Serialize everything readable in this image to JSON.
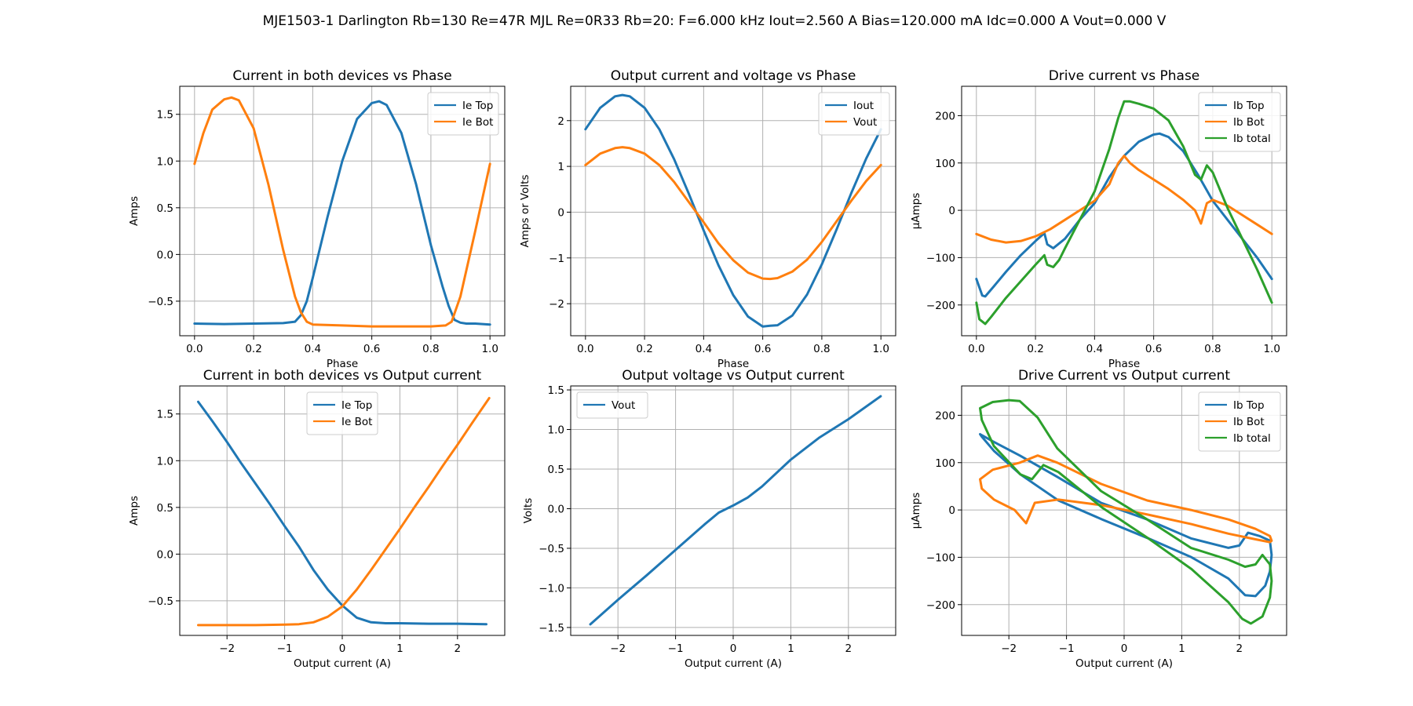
{
  "figure": {
    "title": "MJE1503-1 Darlington Rb=130 Re=47R MJL Re=0R33 Rb=20: F=6.000 kHz Iout=2.560 A Bias=120.000 mA Idc=0.000 A Vout=0.000 V"
  },
  "colors": {
    "blue": "#1f77b4",
    "orange": "#ff7f0e",
    "green": "#2ca02c",
    "grid": "#b0b0b0"
  },
  "chart_data": [
    {
      "id": "p1",
      "type": "line",
      "title": "Current in both devices vs Phase",
      "xlabel": "Phase",
      "ylabel": "Amps",
      "xlim": [
        -0.05,
        1.05
      ],
      "ylim": [
        -0.87,
        1.8
      ],
      "xticks": [
        0.0,
        0.2,
        0.4,
        0.6,
        0.8,
        1.0
      ],
      "yticks": [
        -0.5,
        0.0,
        0.5,
        1.0,
        1.5
      ],
      "xtick_labels": [
        "0.0",
        "0.2",
        "0.4",
        "0.6",
        "0.8",
        "1.0"
      ],
      "ytick_labels": [
        "−0.5",
        "0.0",
        "0.5",
        "1.0",
        "1.5"
      ],
      "grid": true,
      "legend_loc": "upper right",
      "series": [
        {
          "name": "Ie Top",
          "color": "blue",
          "x": [
            0.0,
            0.1,
            0.2,
            0.3,
            0.34,
            0.36,
            0.38,
            0.4,
            0.45,
            0.5,
            0.55,
            0.6,
            0.625,
            0.65,
            0.7,
            0.75,
            0.8,
            0.84,
            0.86,
            0.88,
            0.9,
            0.92,
            0.95,
            1.0
          ],
          "y": [
            -0.74,
            -0.745,
            -0.74,
            -0.735,
            -0.72,
            -0.65,
            -0.5,
            -0.25,
            0.4,
            1.0,
            1.45,
            1.62,
            1.64,
            1.6,
            1.3,
            0.75,
            0.1,
            -0.35,
            -0.55,
            -0.7,
            -0.73,
            -0.74,
            -0.74,
            -0.75
          ]
        },
        {
          "name": "Ie Bot",
          "color": "orange",
          "x": [
            0.0,
            0.03,
            0.06,
            0.1,
            0.125,
            0.15,
            0.2,
            0.25,
            0.3,
            0.34,
            0.36,
            0.38,
            0.4,
            0.5,
            0.6,
            0.7,
            0.8,
            0.85,
            0.87,
            0.9,
            0.95,
            1.0
          ],
          "y": [
            0.97,
            1.3,
            1.55,
            1.66,
            1.68,
            1.65,
            1.35,
            0.75,
            0.05,
            -0.45,
            -0.62,
            -0.72,
            -0.75,
            -0.76,
            -0.77,
            -0.77,
            -0.77,
            -0.76,
            -0.72,
            -0.45,
            0.25,
            0.97
          ]
        }
      ]
    },
    {
      "id": "p2",
      "type": "line",
      "title": "Output current and voltage vs Phase",
      "xlabel": "Phase",
      "ylabel": "Amps or Volts",
      "xlim": [
        -0.05,
        1.05
      ],
      "ylim": [
        -2.7,
        2.75
      ],
      "xticks": [
        0.0,
        0.2,
        0.4,
        0.6,
        0.8,
        1.0
      ],
      "yticks": [
        -2,
        -1,
        0,
        1,
        2
      ],
      "xtick_labels": [
        "0.0",
        "0.2",
        "0.4",
        "0.6",
        "0.8",
        "1.0"
      ],
      "ytick_labels": [
        "−2",
        "−1",
        "0",
        "1",
        "2"
      ],
      "grid": true,
      "legend_loc": "upper right",
      "series": [
        {
          "name": "Iout",
          "color": "blue",
          "x": [
            0.0,
            0.05,
            0.1,
            0.125,
            0.15,
            0.2,
            0.25,
            0.3,
            0.35,
            0.4,
            0.45,
            0.5,
            0.55,
            0.6,
            0.625,
            0.65,
            0.7,
            0.75,
            0.8,
            0.85,
            0.9,
            0.95,
            1.0
          ],
          "y": [
            1.81,
            2.28,
            2.53,
            2.56,
            2.53,
            2.28,
            1.81,
            1.16,
            0.4,
            -0.4,
            -1.16,
            -1.81,
            -2.28,
            -2.5,
            -2.48,
            -2.47,
            -2.26,
            -1.8,
            -1.14,
            -0.38,
            0.42,
            1.17,
            1.81
          ]
        },
        {
          "name": "Vout",
          "color": "orange",
          "x": [
            0.0,
            0.05,
            0.1,
            0.125,
            0.15,
            0.2,
            0.25,
            0.3,
            0.35,
            0.4,
            0.45,
            0.5,
            0.55,
            0.6,
            0.625,
            0.65,
            0.7,
            0.75,
            0.8,
            0.85,
            0.9,
            0.95,
            1.0
          ],
          "y": [
            1.03,
            1.28,
            1.4,
            1.42,
            1.4,
            1.28,
            1.03,
            0.66,
            0.22,
            -0.22,
            -0.68,
            -1.05,
            -1.32,
            -1.45,
            -1.46,
            -1.44,
            -1.3,
            -1.04,
            -0.65,
            -0.2,
            0.25,
            0.68,
            1.03
          ]
        }
      ]
    },
    {
      "id": "p3",
      "type": "line",
      "title": "Drive current vs Phase",
      "xlabel": "Phase",
      "ylabel": "µAmps",
      "xlim": [
        -0.05,
        1.05
      ],
      "ylim": [
        -265,
        262
      ],
      "xticks": [
        0.0,
        0.2,
        0.4,
        0.6,
        0.8,
        1.0
      ],
      "yticks": [
        -200,
        -100,
        0,
        100,
        200
      ],
      "xtick_labels": [
        "0.0",
        "0.2",
        "0.4",
        "0.6",
        "0.8",
        "1.0"
      ],
      "ytick_labels": [
        "−200",
        "−100",
        "0",
        "100",
        "200"
      ],
      "grid": true,
      "legend_loc": "upper right",
      "series": [
        {
          "name": "Ib Top",
          "color": "blue",
          "x": [
            0.0,
            0.02,
            0.03,
            0.06,
            0.1,
            0.15,
            0.2,
            0.23,
            0.24,
            0.26,
            0.3,
            0.35,
            0.4,
            0.45,
            0.5,
            0.55,
            0.6,
            0.62,
            0.65,
            0.7,
            0.75,
            0.8,
            0.85,
            0.9,
            0.95,
            1.0
          ],
          "y": [
            -145,
            -180,
            -182,
            -160,
            -130,
            -95,
            -65,
            -48,
            -72,
            -80,
            -60,
            -20,
            15,
            70,
            115,
            145,
            160,
            162,
            155,
            125,
            75,
            20,
            -20,
            -60,
            -100,
            -145
          ]
        },
        {
          "name": "Ib Bot",
          "color": "orange",
          "x": [
            0.0,
            0.05,
            0.1,
            0.15,
            0.2,
            0.25,
            0.3,
            0.35,
            0.4,
            0.45,
            0.48,
            0.5,
            0.52,
            0.55,
            0.6,
            0.65,
            0.7,
            0.74,
            0.76,
            0.78,
            0.8,
            0.85,
            0.9,
            0.95,
            1.0
          ],
          "y": [
            -50,
            -62,
            -68,
            -65,
            -55,
            -40,
            -20,
            0,
            20,
            55,
            100,
            115,
            100,
            85,
            65,
            45,
            22,
            0,
            -28,
            15,
            22,
            10,
            -10,
            -30,
            -50
          ]
        },
        {
          "name": "Ib total",
          "color": "green",
          "x": [
            0.0,
            0.01,
            0.03,
            0.05,
            0.1,
            0.15,
            0.2,
            0.23,
            0.24,
            0.26,
            0.28,
            0.3,
            0.35,
            0.4,
            0.45,
            0.48,
            0.5,
            0.52,
            0.55,
            0.6,
            0.65,
            0.7,
            0.74,
            0.76,
            0.78,
            0.8,
            0.85,
            0.9,
            0.95,
            1.0
          ],
          "y": [
            -195,
            -230,
            -240,
            -225,
            -185,
            -150,
            -115,
            -95,
            -115,
            -120,
            -105,
            -80,
            -20,
            40,
            130,
            195,
            230,
            230,
            225,
            215,
            190,
            135,
            75,
            65,
            95,
            80,
            5,
            -60,
            -125,
            -195
          ]
        }
      ]
    },
    {
      "id": "p4",
      "type": "line",
      "title": "Current in both devices vs Output current",
      "xlabel": "Output current (A)",
      "ylabel": "Amps",
      "xlim": [
        -2.82,
        2.82
      ],
      "ylim": [
        -0.87,
        1.8
      ],
      "xticks": [
        -2,
        -1,
        0,
        1,
        2
      ],
      "yticks": [
        -0.5,
        0.0,
        0.5,
        1.0,
        1.5
      ],
      "xtick_labels": [
        "−2",
        "−1",
        "0",
        "1",
        "2"
      ],
      "ytick_labels": [
        "−0.5",
        "0.0",
        "0.5",
        "1.0",
        "1.5"
      ],
      "grid": true,
      "legend_loc": "upper center",
      "series": [
        {
          "name": "Ie Top",
          "color": "blue",
          "x": [
            -2.5,
            -2.25,
            -2.0,
            -1.75,
            -1.5,
            -1.25,
            -1.0,
            -0.75,
            -0.5,
            -0.25,
            0.0,
            0.25,
            0.5,
            0.75,
            1.0,
            1.5,
            2.0,
            2.5
          ],
          "y": [
            1.63,
            1.42,
            1.2,
            0.97,
            0.75,
            0.53,
            0.3,
            0.08,
            -0.17,
            -0.38,
            -0.55,
            -0.68,
            -0.73,
            -0.74,
            -0.74,
            -0.745,
            -0.745,
            -0.75
          ]
        },
        {
          "name": "Ie Bot",
          "color": "orange",
          "x": [
            -2.5,
            -2.0,
            -1.5,
            -1.0,
            -0.75,
            -0.5,
            -0.25,
            0.0,
            0.25,
            0.5,
            0.75,
            1.0,
            1.25,
            1.5,
            1.75,
            2.0,
            2.25,
            2.55
          ],
          "y": [
            -0.76,
            -0.76,
            -0.76,
            -0.755,
            -0.75,
            -0.73,
            -0.67,
            -0.56,
            -0.38,
            -0.17,
            0.05,
            0.27,
            0.5,
            0.72,
            0.95,
            1.17,
            1.4,
            1.67
          ]
        }
      ]
    },
    {
      "id": "p5",
      "type": "line",
      "title": "Output voltage vs Output current",
      "xlabel": "Output current (A)",
      "ylabel": "Volts",
      "xlim": [
        -2.82,
        2.82
      ],
      "ylim": [
        -1.6,
        1.55
      ],
      "xticks": [
        -2,
        -1,
        0,
        1,
        2
      ],
      "yticks": [
        -1.5,
        -1.0,
        -0.5,
        0.0,
        0.5,
        1.0,
        1.5
      ],
      "xtick_labels": [
        "−2",
        "−1",
        "0",
        "1",
        "2"
      ],
      "ytick_labels": [
        "−1.5",
        "−1.0",
        "−0.5",
        "0.0",
        "0.5",
        "1.0",
        "1.5"
      ],
      "grid": true,
      "legend_loc": "upper left",
      "series": [
        {
          "name": "Vout",
          "color": "blue",
          "x": [
            -2.48,
            -2.0,
            -1.5,
            -1.0,
            -0.5,
            -0.25,
            0.0,
            0.25,
            0.5,
            1.0,
            1.5,
            2.0,
            2.56
          ],
          "y": [
            -1.46,
            -1.15,
            -0.84,
            -0.52,
            -0.2,
            -0.05,
            0.04,
            0.14,
            0.28,
            0.62,
            0.9,
            1.13,
            1.42
          ]
        }
      ]
    },
    {
      "id": "p6",
      "type": "line",
      "title": "Drive Current vs Output current",
      "xlabel": "Output current (A)",
      "ylabel": "µAmps",
      "xlim": [
        -2.82,
        2.82
      ],
      "ylim": [
        -265,
        262
      ],
      "xticks": [
        -2,
        -1,
        0,
        1,
        2
      ],
      "yticks": [
        -200,
        -100,
        0,
        100,
        200
      ],
      "xtick_labels": [
        "−2",
        "−1",
        "0",
        "1",
        "2"
      ],
      "ytick_labels": [
        "−200",
        "−100",
        "0",
        "100",
        "200"
      ],
      "grid": true,
      "legend_loc": "upper right",
      "series": [
        {
          "name": "Ib Top",
          "color": "blue",
          "x": [
            1.81,
            2.1,
            2.28,
            2.45,
            2.53,
            2.56,
            2.53,
            2.35,
            2.15,
            2.0,
            1.81,
            1.16,
            0.4,
            -0.4,
            -1.16,
            -1.81,
            -2.28,
            -2.5,
            -2.47,
            -2.26,
            -1.8,
            -1.14,
            -0.38,
            0.42,
            1.17,
            1.81
          ],
          "y": [
            -145,
            -180,
            -182,
            -160,
            -130,
            -95,
            -65,
            -55,
            -48,
            -75,
            -80,
            -60,
            -20,
            15,
            70,
            115,
            145,
            160,
            155,
            125,
            75,
            20,
            -20,
            -60,
            -100,
            -145
          ]
        },
        {
          "name": "Ib Bot",
          "color": "orange",
          "x": [
            1.81,
            2.28,
            2.53,
            2.56,
            2.53,
            2.28,
            1.81,
            1.16,
            0.4,
            -0.4,
            -1.16,
            -1.5,
            -1.81,
            -2.28,
            -2.5,
            -2.47,
            -2.26,
            -1.9,
            -1.7,
            -1.55,
            -1.14,
            -0.38,
            0.42,
            1.17,
            1.81
          ],
          "y": [
            -50,
            -62,
            -68,
            -65,
            -55,
            -40,
            -20,
            0,
            20,
            55,
            100,
            115,
            100,
            85,
            65,
            45,
            22,
            0,
            -28,
            15,
            22,
            10,
            -10,
            -30,
            -50
          ]
        },
        {
          "name": "Ib total",
          "color": "green",
          "x": [
            1.81,
            2.05,
            2.2,
            2.4,
            2.53,
            2.56,
            2.53,
            2.4,
            2.28,
            2.1,
            1.81,
            1.16,
            0.4,
            -0.4,
            -1.16,
            -1.5,
            -1.81,
            -2.0,
            -2.28,
            -2.5,
            -2.47,
            -2.26,
            -1.8,
            -1.6,
            -1.4,
            -1.14,
            -0.38,
            0.42,
            1.17,
            1.81
          ],
          "y": [
            -195,
            -230,
            -240,
            -225,
            -185,
            -150,
            -115,
            -95,
            -115,
            -120,
            -105,
            -80,
            -20,
            40,
            130,
            195,
            230,
            232,
            228,
            215,
            190,
            135,
            75,
            65,
            95,
            80,
            5,
            -60,
            -125,
            -195
          ]
        }
      ]
    }
  ]
}
